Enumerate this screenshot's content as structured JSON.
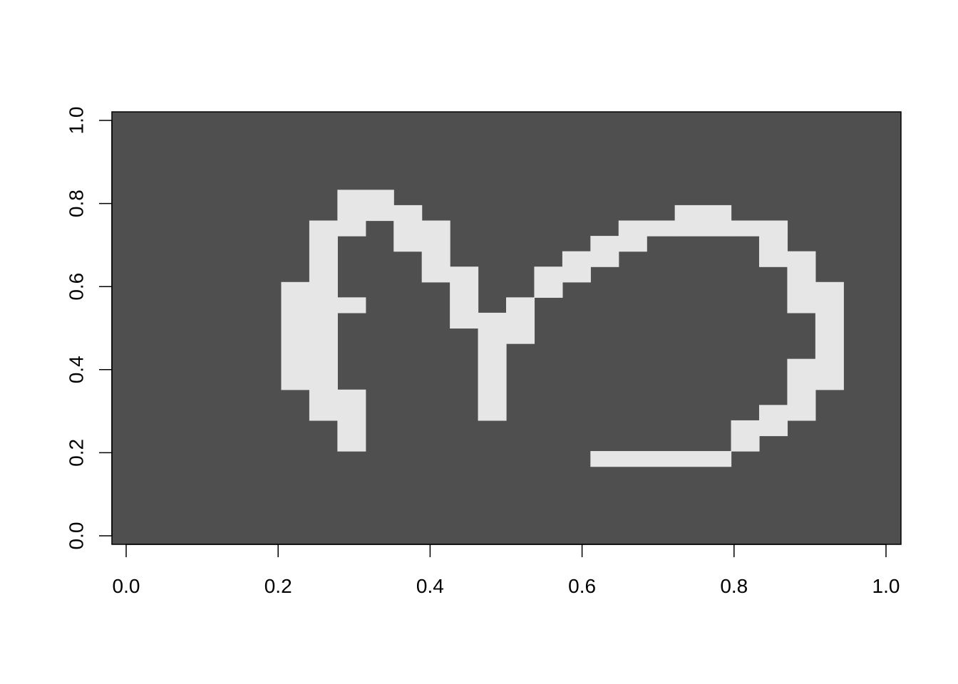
{
  "chart_data": {
    "type": "heatmap",
    "title": "",
    "xlabel": "",
    "ylabel": "",
    "xlim": [
      0,
      1
    ],
    "ylim": [
      0,
      1
    ],
    "grid": false,
    "background_color": "#4f4f4f",
    "foreground_color": "#e6e6e6",
    "x_ticks": [
      {
        "value": 0.0,
        "label": "0.0"
      },
      {
        "value": 0.2,
        "label": "0.2"
      },
      {
        "value": 0.4,
        "label": "0.4"
      },
      {
        "value": 0.6,
        "label": "0.6"
      },
      {
        "value": 0.8,
        "label": "0.8"
      },
      {
        "value": 1.0,
        "label": "1.0"
      }
    ],
    "y_ticks": [
      {
        "value": 0.0,
        "label": "0.0"
      },
      {
        "value": 0.2,
        "label": "0.2"
      },
      {
        "value": 0.4,
        "label": "0.4"
      },
      {
        "value": 0.6,
        "label": "0.6"
      },
      {
        "value": 0.8,
        "label": "0.8"
      },
      {
        "value": 1.0,
        "label": "1.0"
      }
    ],
    "grid_columns": 28,
    "grid_rows": 28,
    "cell_width": 0.037,
    "cell_height": 0.037,
    "lit_cells": [
      {
        "x": 0.204,
        "y": 0.352,
        "w": 0.037,
        "h": 0.259
      },
      {
        "x": 0.241,
        "y": 0.278,
        "w": 0.037,
        "h": 0.481
      },
      {
        "x": 0.278,
        "y": 0.204,
        "w": 0.037,
        "h": 0.148
      },
      {
        "x": 0.278,
        "y": 0.537,
        "w": 0.037,
        "h": 0.037
      },
      {
        "x": 0.278,
        "y": 0.722,
        "w": 0.037,
        "h": 0.111
      },
      {
        "x": 0.315,
        "y": 0.759,
        "w": 0.037,
        "h": 0.074
      },
      {
        "x": 0.352,
        "y": 0.685,
        "w": 0.037,
        "h": 0.111
      },
      {
        "x": 0.389,
        "y": 0.611,
        "w": 0.037,
        "h": 0.148
      },
      {
        "x": 0.426,
        "y": 0.5,
        "w": 0.037,
        "h": 0.148
      },
      {
        "x": 0.463,
        "y": 0.278,
        "w": 0.037,
        "h": 0.259
      },
      {
        "x": 0.5,
        "y": 0.463,
        "w": 0.037,
        "h": 0.111
      },
      {
        "x": 0.537,
        "y": 0.574,
        "w": 0.037,
        "h": 0.074
      },
      {
        "x": 0.574,
        "y": 0.611,
        "w": 0.037,
        "h": 0.074
      },
      {
        "x": 0.611,
        "y": 0.648,
        "w": 0.037,
        "h": 0.074
      },
      {
        "x": 0.648,
        "y": 0.685,
        "w": 0.037,
        "h": 0.074
      },
      {
        "x": 0.685,
        "y": 0.722,
        "w": 0.037,
        "h": 0.037
      },
      {
        "x": 0.722,
        "y": 0.722,
        "w": 0.074,
        "h": 0.074
      },
      {
        "x": 0.796,
        "y": 0.722,
        "w": 0.074,
        "h": 0.037
      },
      {
        "x": 0.833,
        "y": 0.648,
        "w": 0.037,
        "h": 0.111
      },
      {
        "x": 0.87,
        "y": 0.537,
        "w": 0.037,
        "h": 0.148
      },
      {
        "x": 0.907,
        "y": 0.352,
        "w": 0.037,
        "h": 0.259
      },
      {
        "x": 0.87,
        "y": 0.278,
        "w": 0.037,
        "h": 0.148
      },
      {
        "x": 0.833,
        "y": 0.241,
        "w": 0.037,
        "h": 0.074
      },
      {
        "x": 0.796,
        "y": 0.204,
        "w": 0.037,
        "h": 0.074
      },
      {
        "x": 0.611,
        "y": 0.167,
        "w": 0.185,
        "h": 0.037
      }
    ]
  }
}
